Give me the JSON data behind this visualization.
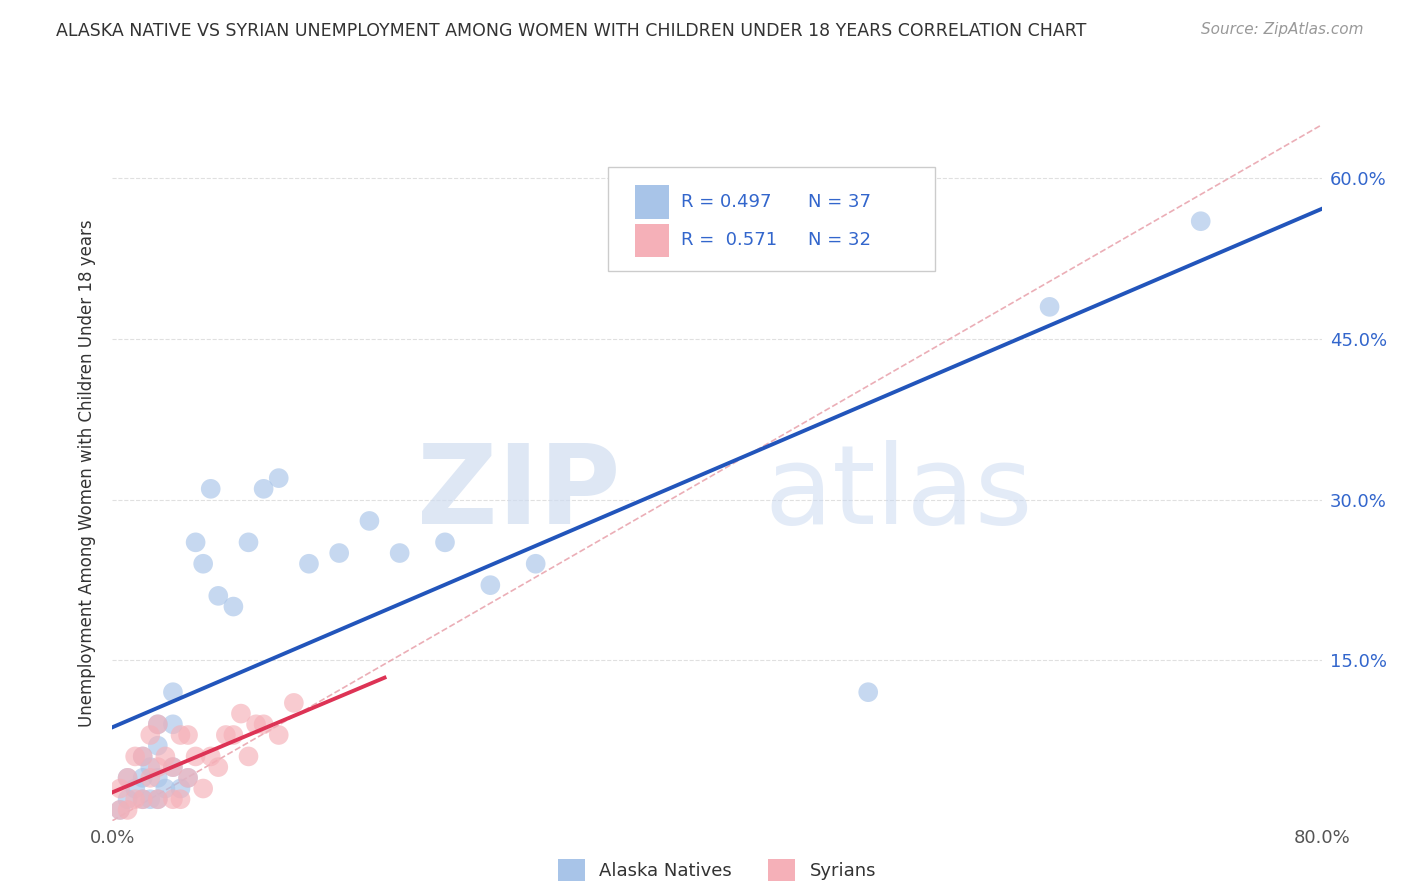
{
  "title": "ALASKA NATIVE VS SYRIAN UNEMPLOYMENT AMONG WOMEN WITH CHILDREN UNDER 18 YEARS CORRELATION CHART",
  "source": "Source: ZipAtlas.com",
  "ylabel": "Unemployment Among Women with Children Under 18 years",
  "xlim": [
    0.0,
    0.8
  ],
  "ylim": [
    0.0,
    0.65
  ],
  "xtick_positions": [
    0.0,
    0.1,
    0.2,
    0.3,
    0.4,
    0.5,
    0.6,
    0.7,
    0.8
  ],
  "xtick_labels": [
    "0.0%",
    "",
    "",
    "",
    "",
    "",
    "",
    "",
    "80.0%"
  ],
  "ytick_positions": [
    0.0,
    0.15,
    0.3,
    0.45,
    0.6
  ],
  "ytick_labels": [
    "",
    "15.0%",
    "30.0%",
    "45.0%",
    "60.0%"
  ],
  "background_color": "#ffffff",
  "grid_color": "#e0e0e0",
  "legend_r1": "0.497",
  "legend_n1": "37",
  "legend_r2": "0.571",
  "legend_n2": "32",
  "alaska_color": "#a8c4e8",
  "syrian_color": "#f5b0b8",
  "alaska_line_color": "#2255bb",
  "syrian_line_color": "#dd3355",
  "ref_line_color": "#e8a0aa",
  "alaska_points_x": [
    0.005,
    0.01,
    0.01,
    0.015,
    0.02,
    0.02,
    0.02,
    0.025,
    0.025,
    0.03,
    0.03,
    0.03,
    0.03,
    0.035,
    0.04,
    0.04,
    0.04,
    0.045,
    0.05,
    0.055,
    0.06,
    0.065,
    0.07,
    0.08,
    0.09,
    0.1,
    0.11,
    0.13,
    0.15,
    0.17,
    0.19,
    0.22,
    0.25,
    0.28,
    0.5,
    0.62,
    0.72
  ],
  "alaska_points_y": [
    0.01,
    0.02,
    0.04,
    0.03,
    0.02,
    0.04,
    0.06,
    0.02,
    0.05,
    0.02,
    0.04,
    0.07,
    0.09,
    0.03,
    0.05,
    0.09,
    0.12,
    0.03,
    0.04,
    0.26,
    0.24,
    0.31,
    0.21,
    0.2,
    0.26,
    0.31,
    0.32,
    0.24,
    0.25,
    0.28,
    0.25,
    0.26,
    0.22,
    0.24,
    0.12,
    0.48,
    0.56
  ],
  "syrian_points_x": [
    0.005,
    0.005,
    0.01,
    0.01,
    0.015,
    0.015,
    0.02,
    0.02,
    0.025,
    0.025,
    0.03,
    0.03,
    0.03,
    0.035,
    0.04,
    0.04,
    0.045,
    0.045,
    0.05,
    0.05,
    0.055,
    0.06,
    0.065,
    0.07,
    0.075,
    0.08,
    0.085,
    0.09,
    0.095,
    0.1,
    0.11,
    0.12
  ],
  "syrian_points_y": [
    0.01,
    0.03,
    0.01,
    0.04,
    0.02,
    0.06,
    0.02,
    0.06,
    0.04,
    0.08,
    0.02,
    0.05,
    0.09,
    0.06,
    0.02,
    0.05,
    0.02,
    0.08,
    0.04,
    0.08,
    0.06,
    0.03,
    0.06,
    0.05,
    0.08,
    0.08,
    0.1,
    0.06,
    0.09,
    0.09,
    0.08,
    0.11
  ]
}
